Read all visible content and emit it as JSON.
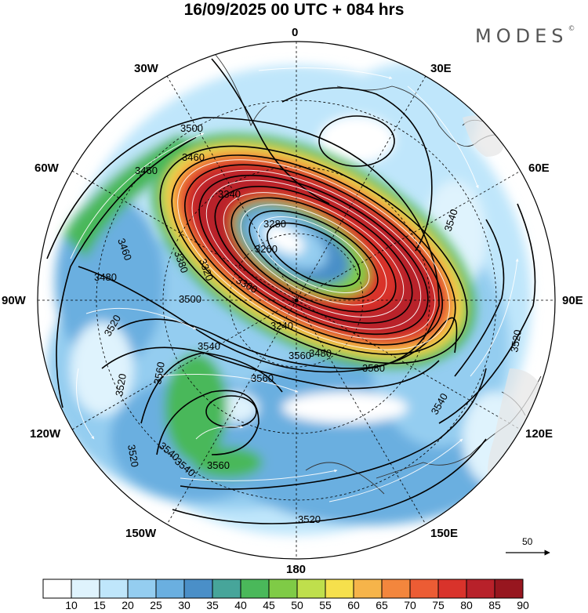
{
  "title": "16/09/2025  00 UTC  + 084 hrs",
  "logo": "MODES",
  "logo_mark": "©",
  "longitude_labels": [
    {
      "lon": 0,
      "text": "0"
    },
    {
      "lon": 30,
      "text": "30E"
    },
    {
      "lon": 60,
      "text": "60E"
    },
    {
      "lon": 90,
      "text": "90E"
    },
    {
      "lon": 120,
      "text": "120E"
    },
    {
      "lon": 150,
      "text": "150E"
    },
    {
      "lon": 180,
      "text": "180"
    },
    {
      "lon": -150,
      "text": "150W"
    },
    {
      "lon": -120,
      "text": "120W"
    },
    {
      "lon": -90,
      "text": "90W"
    },
    {
      "lon": -60,
      "text": "60W"
    },
    {
      "lon": -30,
      "text": "30W"
    }
  ],
  "contour_labels": [
    "3500",
    "3460",
    "3460",
    "3540",
    "3340",
    "3380",
    "3320",
    "3280",
    "3260",
    "3460",
    "3480",
    "3500",
    "3540",
    "3520",
    "3560",
    "3520",
    "3580",
    "3540",
    "3520",
    "3520",
    "3560",
    "3540",
    "3560",
    "3520",
    "3300",
    "3240",
    "3560",
    "3480",
    "3540"
  ],
  "vector_reference": {
    "value": "50"
  },
  "colorbar": {
    "levels": [
      "10",
      "15",
      "20",
      "25",
      "30",
      "35",
      "40",
      "45",
      "50",
      "55",
      "60",
      "65",
      "70",
      "75",
      "80",
      "85",
      "90"
    ],
    "colors": [
      "#ffffff",
      "#dff3fd",
      "#bfe6fb",
      "#94cdf0",
      "#6aafe0",
      "#4a8fc8",
      "#47a59a",
      "#4ab85a",
      "#7fcb46",
      "#bfdf4c",
      "#f6e04c",
      "#f6b44a",
      "#f3863d",
      "#ec5c34",
      "#d9332b",
      "#b8212a",
      "#97161f"
    ]
  }
}
